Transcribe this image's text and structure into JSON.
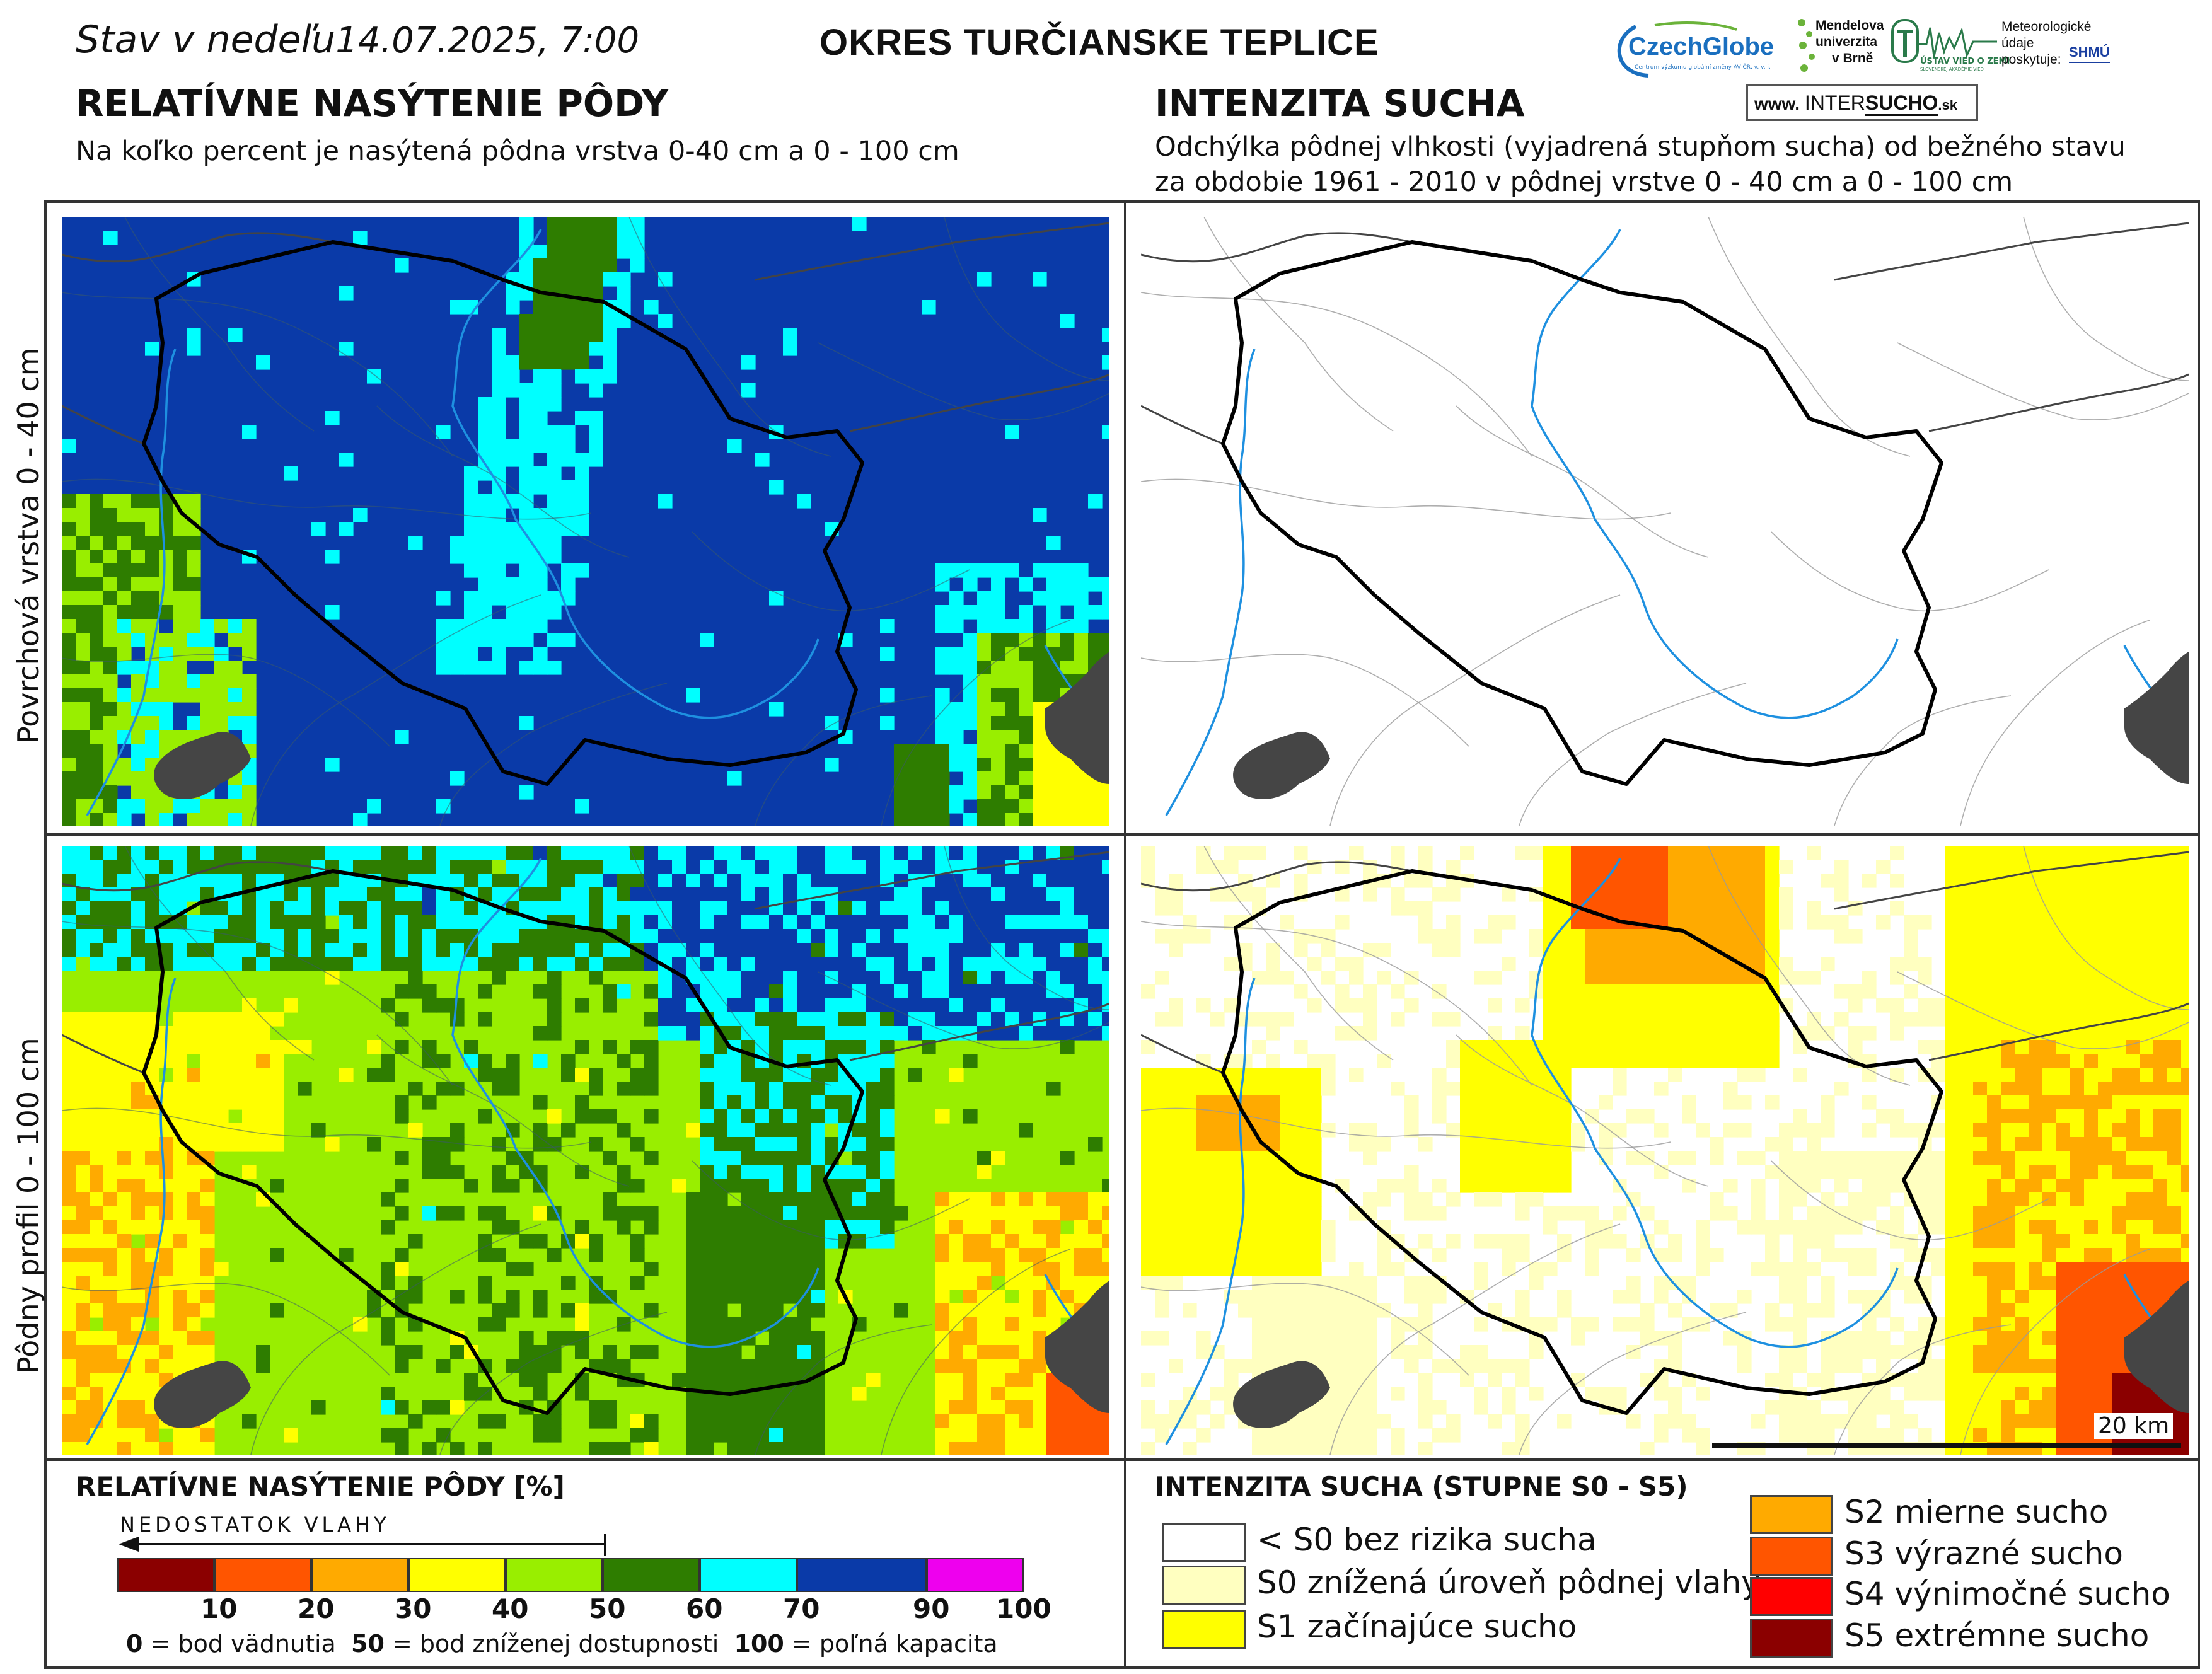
{
  "header": {
    "date_label": "Stav v nedeľu",
    "date_value": "14.07.2025, 7:00",
    "district": "OKRES  TURČIANSKE TEPLICE"
  },
  "left_section": {
    "title": "RELATÍVNE NASÝTENIE PÔDY",
    "subtitle": "Na koľko percent je nasýtená pôdna vrstva 0-40 cm a 0 - 100 cm"
  },
  "right_section": {
    "title": "INTENZITA SUCHA",
    "subtitle_line1": "Odchýlka pôdnej vlhkosti (vyjadrená stupňom sucha) od bežného stavu",
    "subtitle_line2": "za obdobie 1961 - 2010 v pôdnej vrstve 0 - 40 cm a 0 - 100 cm"
  },
  "rows": {
    "top_label": "Povrchová vrstva 0 - 40 cm",
    "bottom_label": "Pôdny profil 0 - 100 cm"
  },
  "logos": {
    "czechglobe": "CzechGlobe",
    "czechglobe_sub": "Centrum výzkumu globální změny AV ČR, v. v. i.",
    "mendel_1": "Mendelova",
    "mendel_2": "univerzita",
    "mendel_3": "v Brně",
    "ustav": "ÚSTAV VIED O ZEMI",
    "ustav_sub": "SLOVENSKEJ AKADÉMIE VIED",
    "meteo_1": "Meteorologické",
    "meteo_2": "údaje",
    "meteo_3": "poskytuje:",
    "shmu": "SHMÚ",
    "web_prefix": "www.",
    "web_inter": "INTER",
    "web_sucho": "SUCHO",
    "web_suffix": ".sk"
  },
  "scalebar": {
    "label": "20 km"
  },
  "legend_saturation": {
    "title": "RELATÍVNE NASÝTENIE PÔDY [%]",
    "arrow_label": "NEDOSTATOK VLAHY",
    "colors": [
      "#8b0000",
      "#ff5500",
      "#ffaa00",
      "#ffff00",
      "#99ee00",
      "#2e7d00",
      "#00ffff",
      "#0a3aa8",
      "#ee00ee"
    ],
    "ticks": [
      "10",
      "20",
      "30",
      "40",
      "50",
      "60",
      "70",
      "90",
      "100"
    ],
    "note_0_num": "0",
    "note_0_text": "= bod vädnutia",
    "note_50_num": "50",
    "note_50_text": "= bod zníženej dostupnosti",
    "note_100_num": "100",
    "note_100_text": "= poľná kapacita"
  },
  "legend_drought": {
    "title": "INTENZITA SUCHA (STUPNE S0 - S5)",
    "items": [
      {
        "label": "< S0 bez rizika sucha",
        "color": "#ffffff"
      },
      {
        "label": "S0 znížená úroveň pôdnej vlahy",
        "color": "#ffffc0"
      },
      {
        "label": "S1 začínajúce sucho",
        "color": "#ffff00"
      },
      {
        "label": "S2 mierne sucho",
        "color": "#ffaa00"
      },
      {
        "label": "S3 výrazné sucho",
        "color": "#ff5500"
      },
      {
        "label": "S4 výnimočné sucho",
        "color": "#ff0000"
      },
      {
        "label": "S5 extrémne sucho",
        "color": "#8b0000"
      }
    ]
  }
}
